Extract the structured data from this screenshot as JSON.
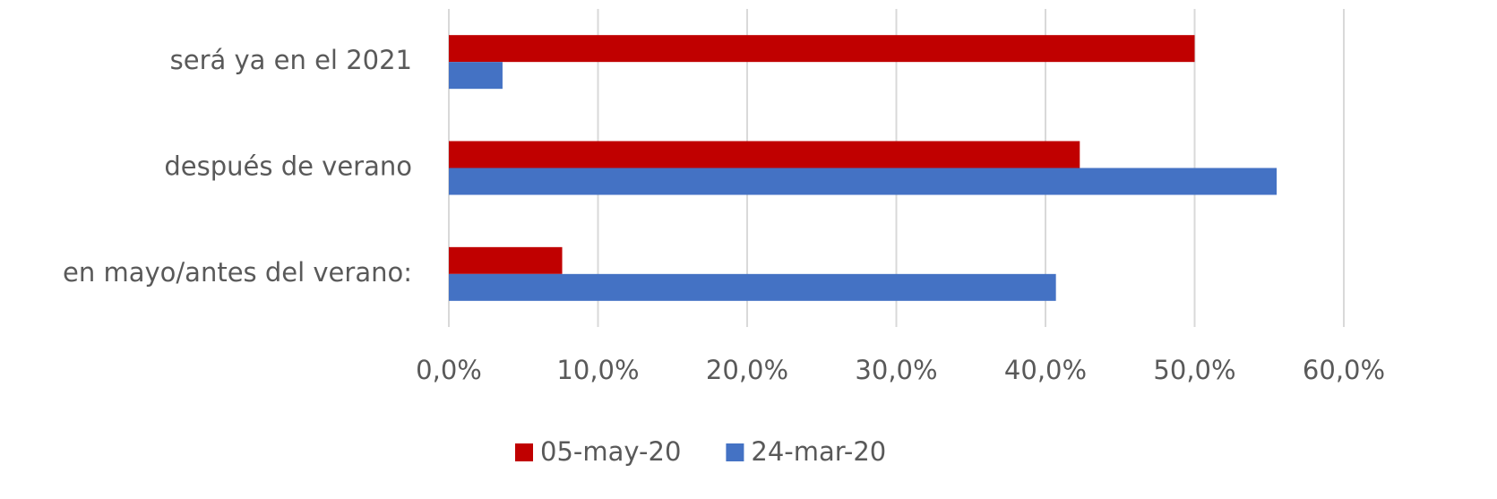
{
  "chart_data": {
    "type": "bar",
    "orientation": "horizontal",
    "categories": [
      "será ya en el 2021",
      "después de verano",
      "en mayo/antes del verano:"
    ],
    "series": [
      {
        "name": "05-may-20",
        "color": "#c00000",
        "values": [
          50.0,
          42.3,
          7.6
        ]
      },
      {
        "name": "24-mar-20",
        "color": "#4472c4",
        "values": [
          3.6,
          55.5,
          40.7
        ]
      }
    ],
    "xlim": [
      0,
      60
    ],
    "xticks": [
      {
        "value": 0,
        "label": "0,0%"
      },
      {
        "value": 10,
        "label": "10,0%"
      },
      {
        "value": 20,
        "label": "20,0%"
      },
      {
        "value": 30,
        "label": "30,0%"
      },
      {
        "value": 40,
        "label": "40,0%"
      },
      {
        "value": 50,
        "label": "50,0%"
      },
      {
        "value": 60,
        "label": "60,0%"
      }
    ],
    "grid": true,
    "legend": "bottom"
  }
}
